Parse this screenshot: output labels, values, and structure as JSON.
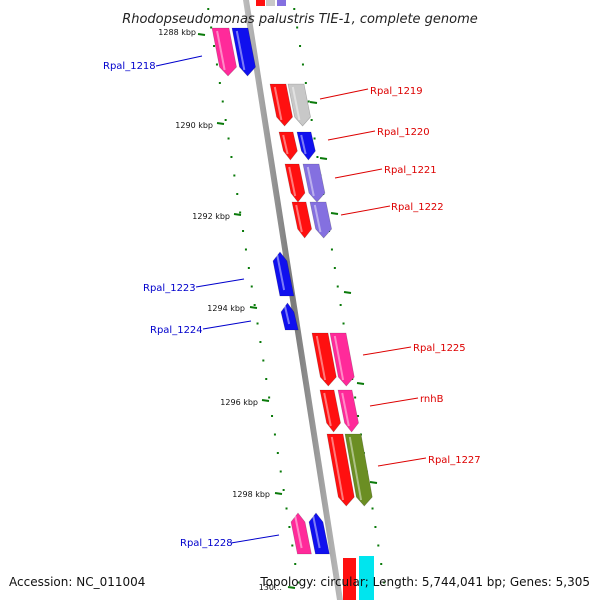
{
  "title": "Rhodopseudomonas palustris TIE-1, complete genome",
  "footer": {
    "accession": "Accession: NC_011004",
    "topology": "Topology: circular; Length: 5,744,041 bp; Genes: 5,305"
  },
  "ticks": [
    {
      "label": "1288 kbp"
    },
    {
      "label": "1290 kbp"
    },
    {
      "label": "1292 kbp"
    },
    {
      "label": "1294 kbp"
    },
    {
      "label": "1296 kbp"
    },
    {
      "label": "1298 kbp"
    },
    {
      "label": "130…"
    }
  ],
  "genes": [
    {
      "name": "Rpal_1218",
      "strand": "minus",
      "colors": [
        "#ff2a9a",
        "#1010ee"
      ]
    },
    {
      "name": "Rpal_1219",
      "strand": "plus",
      "colors": [
        "#ff1010",
        "#c8c8c8"
      ]
    },
    {
      "name": "Rpal_1220",
      "strand": "plus",
      "colors": [
        "#ff1010",
        "#1010ee"
      ]
    },
    {
      "name": "Rpal_1221",
      "strand": "plus",
      "colors": [
        "#ff1010",
        "#8470e0"
      ]
    },
    {
      "name": "Rpal_1222",
      "strand": "plus",
      "colors": [
        "#ff1010",
        "#8470e0"
      ]
    },
    {
      "name": "Rpal_1223",
      "strand": "minus",
      "colors": [
        "#1010ee"
      ]
    },
    {
      "name": "Rpal_1224",
      "strand": "minus",
      "colors": [
        "#1010ee"
      ]
    },
    {
      "name": "Rpal_1225",
      "strand": "plus",
      "colors": [
        "#ff1010",
        "#ff2a9a"
      ]
    },
    {
      "name": "rnhB",
      "strand": "plus",
      "colors": [
        "#ff1010",
        "#ff2a9a"
      ]
    },
    {
      "name": "Rpal_1227",
      "strand": "plus",
      "colors": [
        "#ff1010",
        "#6b8e23"
      ]
    },
    {
      "name": "Rpal_1228",
      "strand": "minus",
      "colors": [
        "#ff2a9a",
        "#1010ee"
      ]
    }
  ],
  "colors": {
    "plus_label": "#dd0000",
    "minus_label": "#0000cc",
    "backbone": "#8c8c8c",
    "tick": "#0a7a0a"
  }
}
